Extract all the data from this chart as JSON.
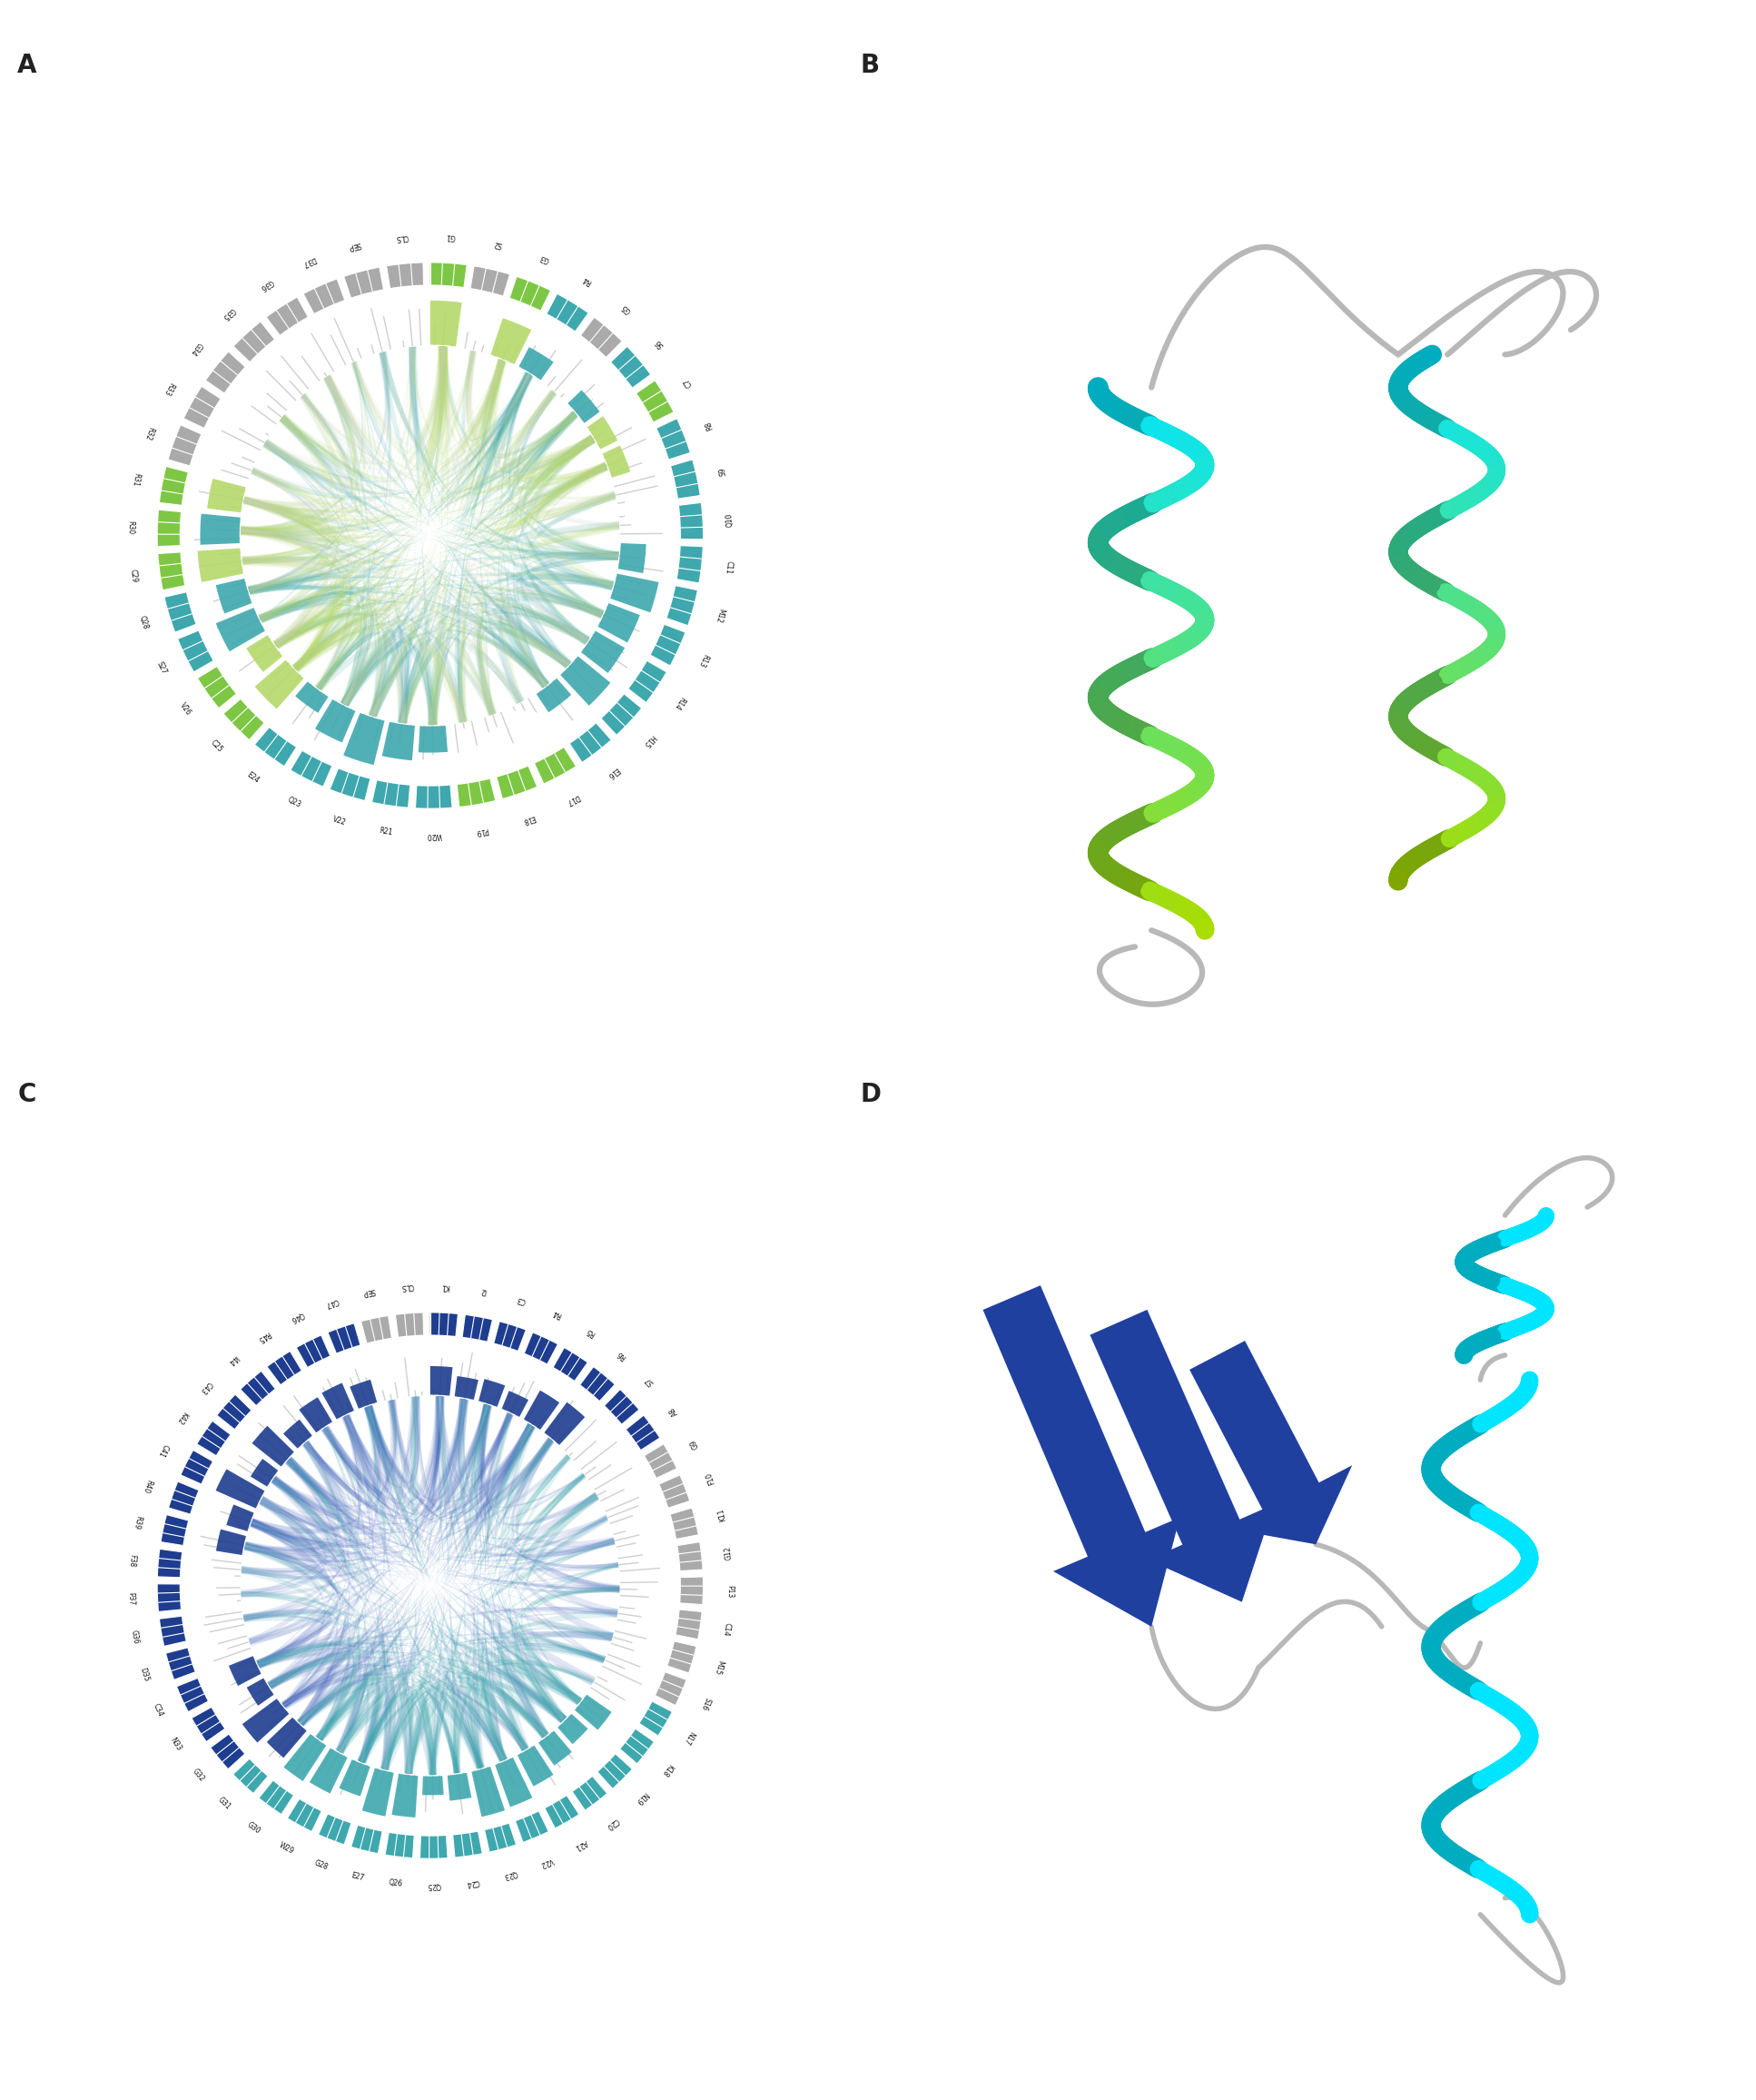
{
  "panel_labels": [
    "A",
    "B",
    "C",
    "D"
  ],
  "panel_A": {
    "segments": [
      "G1",
      "S2",
      "G3",
      "R4",
      "G5",
      "S6",
      "C7",
      "R8",
      "S9",
      "Q10",
      "C11",
      "M12",
      "R13",
      "R14",
      "H15",
      "E16",
      "D17",
      "E18",
      "P19",
      "W20",
      "R21",
      "V22",
      "Q23",
      "E24",
      "C25",
      "V26",
      "S27",
      "Q28",
      "C29",
      "R30",
      "R31",
      "R32",
      "R33",
      "G34",
      "G35",
      "G36",
      "D37",
      "SEP",
      "CLS"
    ],
    "teal_outer": [
      "R4",
      "S6",
      "R8",
      "S9",
      "Q10",
      "C11",
      "M12",
      "R13",
      "R14",
      "H15",
      "E16",
      "W20",
      "R21",
      "V22",
      "Q23",
      "E24",
      "S27",
      "Q28"
    ],
    "gray_outer": [
      "SEP",
      "CLS",
      "G5",
      "S2",
      "R32",
      "R33",
      "G34",
      "G35",
      "G36",
      "D37"
    ],
    "green_outer": [
      "G1",
      "G3",
      "C7",
      "D17",
      "E18",
      "P19",
      "C25",
      "V26",
      "C29",
      "R30",
      "R31"
    ],
    "teal_bar": [
      "R4",
      "S6",
      "Q28",
      "S27",
      "R30",
      "E24",
      "Q23",
      "R21",
      "V22",
      "W20",
      "C11",
      "M12",
      "R13",
      "R14",
      "H15",
      "E16"
    ],
    "green_bar": [
      "G1",
      "G3",
      "C7",
      "C25",
      "V26",
      "C29",
      "R30",
      "R31",
      "R8"
    ],
    "outer_green": "#7dc744",
    "outer_teal": "#3ea8ae",
    "outer_gray": "#aaaaaa",
    "bar_teal": "#3ea8ae",
    "bar_green": "#b5d96b",
    "bar_gray": "#cccccc",
    "chord_teal": "#3ea8ae",
    "chord_green": "#b5d96b",
    "chord_gray": "#d0d0d0"
  },
  "panel_C": {
    "segments": [
      "K1",
      "I2",
      "C3",
      "R4",
      "R5",
      "R6",
      "S7",
      "A8",
      "G9",
      "F10",
      "K11",
      "G12",
      "P13",
      "C14",
      "M15",
      "S16",
      "N17",
      "K18",
      "N19",
      "C20",
      "A21",
      "V22",
      "Q23",
      "C24",
      "Q25",
      "Q26",
      "E27",
      "G28",
      "W29",
      "G30",
      "G31",
      "G32",
      "N33",
      "C34",
      "D35",
      "G36",
      "P37",
      "F38",
      "R39",
      "R40",
      "C41",
      "K42",
      "C43",
      "I44",
      "R45",
      "Q46",
      "C47",
      "SEP",
      "CLS"
    ],
    "dark_blue_outer": [
      "K1",
      "I2",
      "C3",
      "R4",
      "R5",
      "R6",
      "S7",
      "A8",
      "C41",
      "K42",
      "C43",
      "I44",
      "R45",
      "Q46",
      "C47",
      "K18"
    ],
    "teal_outer": [
      "N17",
      "K18",
      "N19",
      "C20",
      "A21",
      "V22",
      "Q23",
      "C24",
      "Q25",
      "Q26",
      "E27",
      "G28",
      "W29",
      "G30",
      "G31"
    ],
    "gray_outer": [
      "SEP",
      "CLS",
      "G9",
      "F10",
      "K11",
      "G12",
      "P13",
      "C14",
      "M15",
      "S16"
    ],
    "dark_blue_bar": [
      "K1",
      "I2",
      "C3",
      "R4",
      "R5",
      "R6",
      "C47",
      "Q46",
      "R45",
      "I44",
      "C43",
      "K42",
      "C41",
      "R40",
      "R39",
      "C34",
      "N33",
      "G32",
      "G31"
    ],
    "teal_bar": [
      "K18",
      "N19",
      "C20",
      "A21",
      "V22",
      "Q23",
      "C24",
      "Q25",
      "Q26",
      "E27",
      "G28",
      "W29",
      "G30"
    ],
    "outer_dark_blue": "#1e3d8f",
    "outer_teal": "#3ea8ae",
    "outer_gray": "#aaaaaa",
    "bar_dark_blue": "#1e3d8f",
    "bar_steel_blue": "#6b84c4",
    "bar_teal": "#3ea8ae",
    "bar_gray": "#cccccc",
    "chord_dark_blue": "#4a6bbf",
    "chord_teal": "#3ea8ae",
    "chord_gray": "#c8d4e8"
  },
  "background_color": "#ffffff",
  "label_fontsize": 20,
  "label_color": "#222222"
}
